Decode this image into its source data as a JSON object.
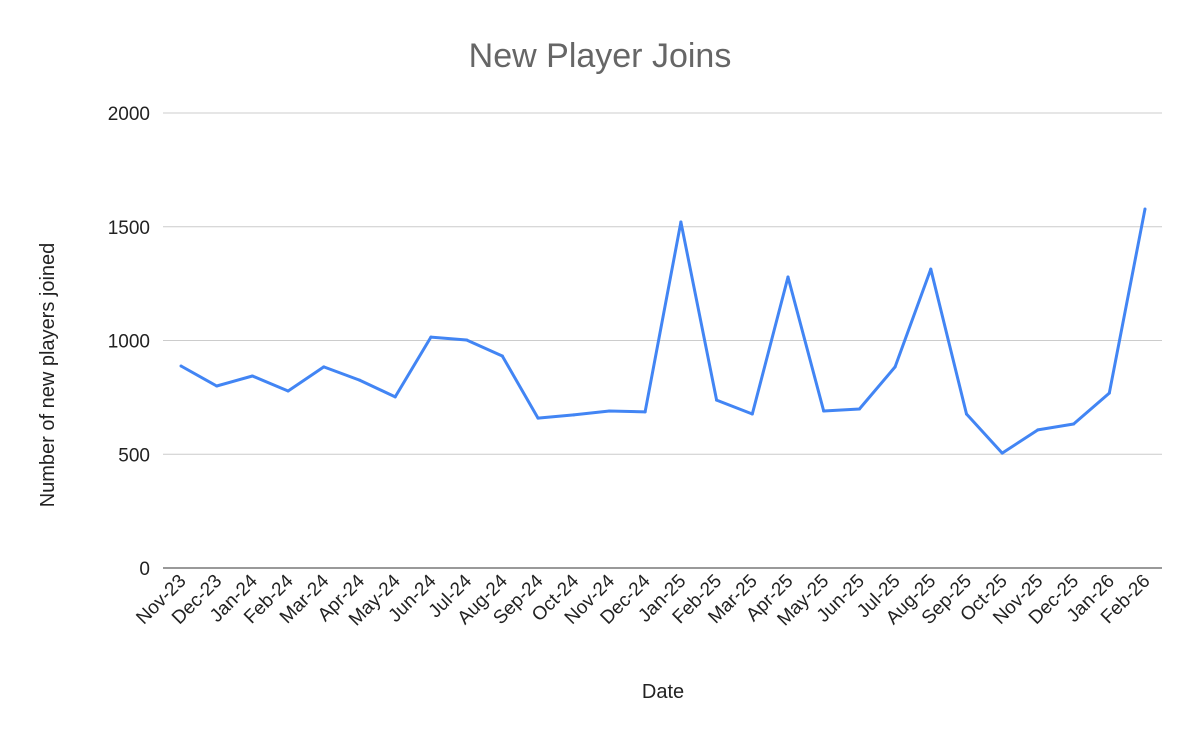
{
  "chart_data": {
    "type": "line",
    "title": "New Player Joins",
    "xlabel": "Date",
    "ylabel": "Number of new players joined",
    "ylim": [
      0,
      2000
    ],
    "yticks": [
      0,
      500,
      1000,
      1500,
      2000
    ],
    "grid": true,
    "legend": "none",
    "line_color": "#4285F4",
    "categories": [
      "Nov-23",
      "Dec-23",
      "Jan-24",
      "Feb-24",
      "Mar-24",
      "Apr-24",
      "May-24",
      "Jun-24",
      "Jul-24",
      "Aug-24",
      "Sep-24",
      "Oct-24",
      "Nov-24",
      "Dec-24",
      "Jan-25",
      "Feb-25",
      "Mar-25",
      "Apr-25",
      "May-25",
      "Jun-25",
      "Jul-25",
      "Aug-25",
      "Sep-25",
      "Oct-25",
      "Nov-25",
      "Dec-25",
      "Jan-26",
      "Feb-26"
    ],
    "values": [
      888,
      800,
      844,
      778,
      884,
      826,
      752,
      1015,
      1002,
      932,
      659,
      673,
      690,
      686,
      1521,
      738,
      677,
      1279,
      690,
      699,
      884,
      1314,
      677,
      505,
      607,
      633,
      769,
      1578
    ]
  }
}
